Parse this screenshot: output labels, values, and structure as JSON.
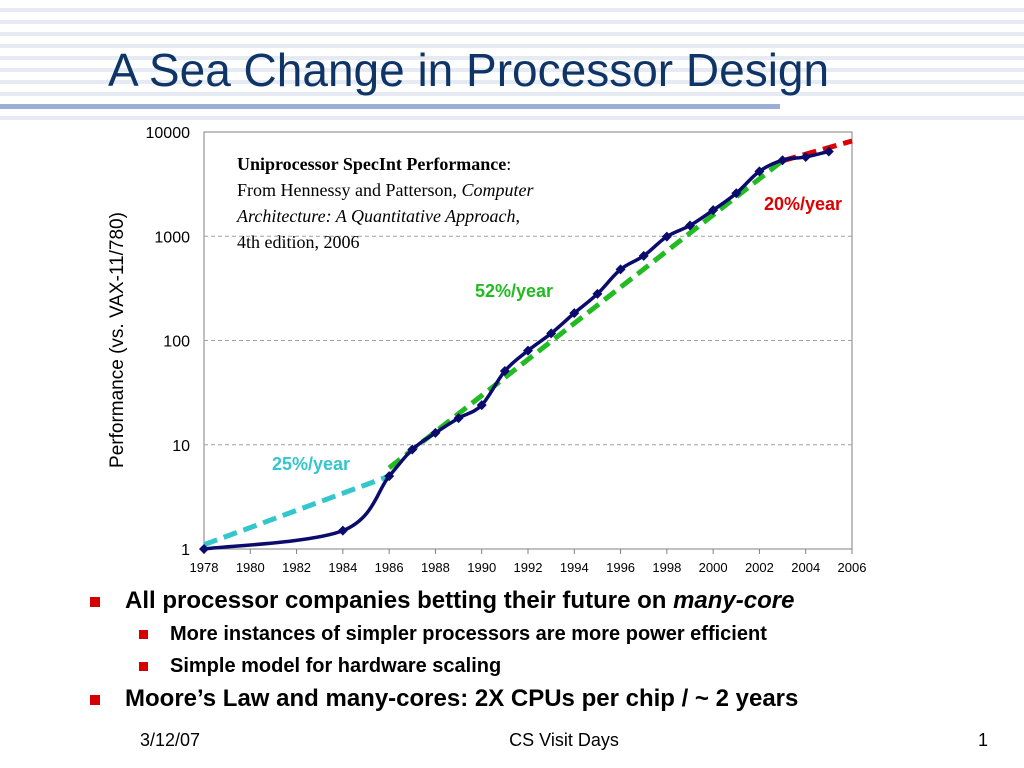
{
  "slide": {
    "title": "A Sea Change in Processor Design",
    "footer": {
      "date": "3/12/07",
      "event": "CS Visit Days",
      "page": "1"
    },
    "bullets": [
      {
        "level": 1,
        "text": "All processor companies betting their future on ",
        "emphasis": "many-core"
      },
      {
        "level": 2,
        "text": "More instances of simpler processors are more power efficient"
      },
      {
        "level": 2,
        "text": "Simple model for hardware scaling"
      },
      {
        "level": 1,
        "text": "Moore’s Law and many-cores: 2X CPUs per chip / ~ 2 years"
      }
    ]
  },
  "chart_data": {
    "type": "line",
    "title": "",
    "ylabel": "Performance (vs. VAX-11/780)",
    "xlabel": "",
    "x_range": [
      1978,
      2006
    ],
    "y_range": [
      1,
      10000
    ],
    "y_scale": "log",
    "x_ticks": [
      "1978",
      "1980",
      "1982",
      "1984",
      "1986",
      "1988",
      "1990",
      "1992",
      "1994",
      "1996",
      "1998",
      "2000",
      "2002",
      "2004",
      "2006"
    ],
    "y_ticks": [
      "1",
      "10",
      "100",
      "1000",
      "10000"
    ],
    "grid": "horizontal dashed",
    "annotation": {
      "title": "Uniprocessor SpecInt Performance",
      "title_suffix": ":",
      "line2_prefix": "From Hennessy and Patterson, ",
      "line2_book": "Computer",
      "line3_book": "Architecture: A Quantitative Approach",
      "line3_suffix": ",",
      "line4": "4th edition, 2006"
    },
    "series": [
      {
        "role": "measured",
        "color": "#0b0b6e",
        "marker": "diamond",
        "points": [
          [
            1978,
            1
          ],
          [
            1984,
            1.5
          ],
          [
            1986,
            5
          ],
          [
            1987,
            9
          ],
          [
            1988,
            13
          ],
          [
            1989,
            18
          ],
          [
            1990,
            24
          ],
          [
            1991,
            51
          ],
          [
            1992,
            80
          ],
          [
            1993,
            117
          ],
          [
            1994,
            183
          ],
          [
            1995,
            280
          ],
          [
            1996,
            481
          ],
          [
            1997,
            649
          ],
          [
            1998,
            993
          ],
          [
            1999,
            1267
          ],
          [
            2000,
            1779
          ],
          [
            2001,
            2584
          ],
          [
            2002,
            4195
          ],
          [
            2003,
            5364
          ],
          [
            2004,
            5764
          ],
          [
            2005,
            6505
          ]
        ]
      },
      {
        "role": "trend",
        "label": "25%/year",
        "color": "#33c6cc",
        "points": [
          [
            1978,
            1.1
          ],
          [
            1986,
            5
          ]
        ]
      },
      {
        "role": "trend",
        "label": "52%/year",
        "color": "#22bb22",
        "points": [
          [
            1986,
            6
          ],
          [
            2003,
            5300
          ]
        ]
      },
      {
        "role": "trend",
        "label": "20%/year",
        "color": "#dd0000",
        "points": [
          [
            2003,
            5300
          ],
          [
            2006,
            8200
          ]
        ]
      }
    ]
  }
}
